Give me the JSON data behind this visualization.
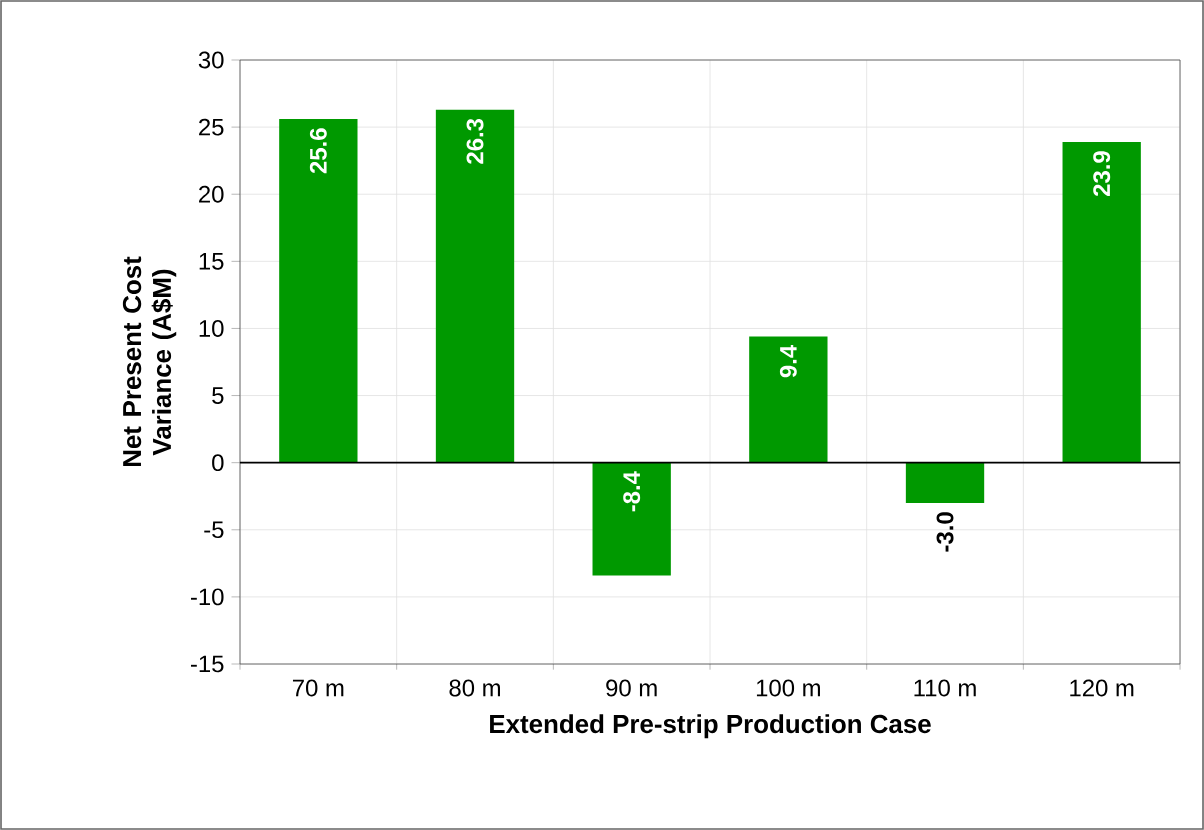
{
  "chart_data": {
    "type": "bar",
    "xlabel": "Extended Pre-strip Production Case",
    "ylabel": "Net Present Cost Variance (A$M)",
    "categories": [
      "70 m",
      "80 m",
      "90 m",
      "100 m",
      "110 m",
      "120 m"
    ],
    "values": [
      25.6,
      26.3,
      -8.4,
      9.4,
      -3.0,
      23.9
    ],
    "value_labels": [
      "25.6",
      "26.3",
      "-8.4",
      "9.4",
      "-3.0",
      "23.9"
    ],
    "color": "#009900",
    "ylim": [
      -15,
      30
    ],
    "yticks": [
      -15,
      -10,
      -5,
      0,
      5,
      10,
      15,
      20,
      25,
      30
    ],
    "grid": true
  }
}
